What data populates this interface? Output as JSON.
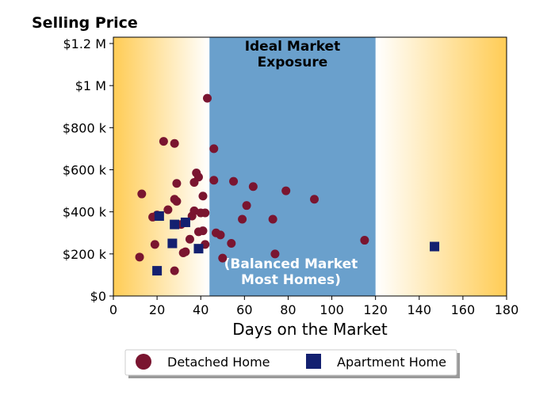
{
  "chart_data": {
    "type": "scatter",
    "title": "Selling Price",
    "xlabel": "Days on the Market",
    "ylabel": "",
    "xlim": [
      0,
      180
    ],
    "ylim": [
      0,
      1230000
    ],
    "xticks": [
      0,
      20,
      40,
      60,
      80,
      100,
      120,
      140,
      160,
      180
    ],
    "xtick_labels": [
      "0",
      "20",
      "40",
      "60",
      "80",
      "100",
      "120",
      "140",
      "160",
      "180"
    ],
    "yticks": [
      0,
      200000,
      400000,
      600000,
      800000,
      1000000,
      1200000
    ],
    "ytick_labels": [
      "$0",
      "$200 k",
      "$400 k",
      "$600 k",
      "$800 k",
      "$1 M",
      "$1.2 M"
    ],
    "grid": false,
    "legend_position": "bottom-center",
    "colors": {
      "detached": "#7a1530",
      "apartment": "#132070",
      "ideal_band": "#6aa0cc",
      "gradient_edge": "#ffcc55",
      "gradient_mid": "#ffffff"
    },
    "regions": [
      {
        "x_range": [
          44,
          120
        ],
        "label": "Ideal Market\nExposure",
        "label_color": "#000000"
      },
      {
        "x_range": [
          44,
          120
        ],
        "label": "(Balanced Market\nMost Homes)",
        "label_color": "#ffffff"
      }
    ],
    "series": [
      {
        "name": "Detached Home",
        "marker": "circle",
        "points": [
          [
            12,
            185000
          ],
          [
            13,
            485000
          ],
          [
            18,
            375000
          ],
          [
            19,
            245000
          ],
          [
            20,
            385000
          ],
          [
            23,
            735000
          ],
          [
            25,
            410000
          ],
          [
            28,
            460000
          ],
          [
            28,
            120000
          ],
          [
            28,
            725000
          ],
          [
            29,
            450000
          ],
          [
            29,
            535000
          ],
          [
            31,
            340000
          ],
          [
            32,
            205000
          ],
          [
            33,
            210000
          ],
          [
            35,
            270000
          ],
          [
            36,
            380000
          ],
          [
            37,
            405000
          ],
          [
            37,
            540000
          ],
          [
            38,
            585000
          ],
          [
            39,
            565000
          ],
          [
            39,
            305000
          ],
          [
            40,
            395000
          ],
          [
            41,
            475000
          ],
          [
            41,
            310000
          ],
          [
            42,
            395000
          ],
          [
            42,
            245000
          ],
          [
            43,
            940000
          ],
          [
            46,
            700000
          ],
          [
            46,
            550000
          ],
          [
            47,
            300000
          ],
          [
            49,
            290000
          ],
          [
            50,
            180000
          ],
          [
            54,
            250000
          ],
          [
            55,
            545000
          ],
          [
            59,
            365000
          ],
          [
            61,
            430000
          ],
          [
            64,
            520000
          ],
          [
            73,
            365000
          ],
          [
            74,
            200000
          ],
          [
            79,
            500000
          ],
          [
            92,
            460000
          ],
          [
            115,
            265000
          ]
        ]
      },
      {
        "name": "Apartment Home",
        "marker": "square",
        "points": [
          [
            20,
            120000
          ],
          [
            21,
            380000
          ],
          [
            27,
            250000
          ],
          [
            28,
            340000
          ],
          [
            33,
            350000
          ],
          [
            39,
            225000
          ],
          [
            147,
            235000
          ]
        ]
      }
    ]
  }
}
